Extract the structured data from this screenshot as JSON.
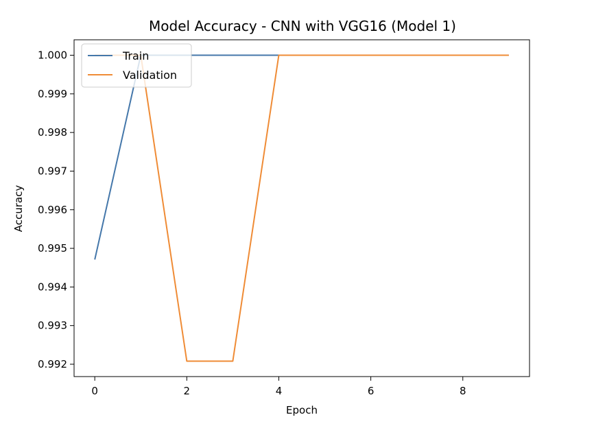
{
  "chart_data": {
    "type": "line",
    "title": "Model Accuracy - CNN with VGG16 (Model 1)",
    "xlabel": "Epoch",
    "ylabel": "Accuracy",
    "x": [
      0,
      1,
      2,
      3,
      4,
      5,
      6,
      7,
      8,
      9
    ],
    "xlim": [
      -0.45,
      9.45
    ],
    "ylim": [
      0.99168,
      1.0004
    ],
    "x_ticks": [
      0,
      2,
      4,
      6,
      8
    ],
    "x_tick_labels": [
      "0",
      "2",
      "4",
      "6",
      "8"
    ],
    "y_ticks": [
      0.992,
      0.993,
      0.994,
      0.995,
      0.996,
      0.997,
      0.998,
      0.999,
      1.0
    ],
    "y_tick_labels": [
      "0.992",
      "0.993",
      "0.994",
      "0.995",
      "0.996",
      "0.997",
      "0.998",
      "0.999",
      "1.000"
    ],
    "grid": false,
    "legend_position": "upper-left",
    "series": [
      {
        "name": "Train",
        "color": "#4477aa",
        "values": [
          0.99471,
          1.0,
          1.0,
          1.0,
          1.0,
          1.0,
          1.0,
          1.0,
          1.0,
          1.0
        ]
      },
      {
        "name": "Validation",
        "color": "#ef8b35",
        "values": [
          1.0,
          1.0,
          0.99208,
          0.99208,
          1.0,
          1.0,
          1.0,
          1.0,
          1.0,
          1.0
        ]
      }
    ]
  }
}
